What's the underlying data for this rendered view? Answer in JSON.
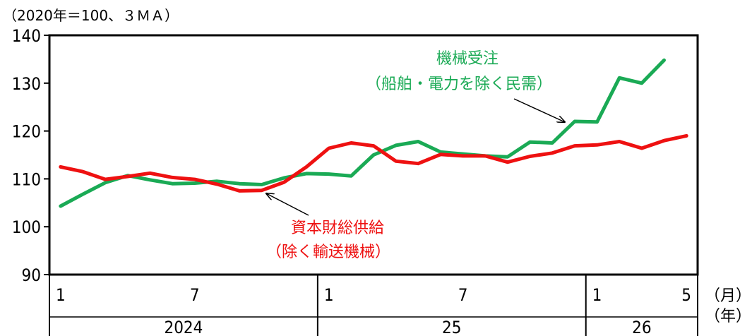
{
  "unit_label": "（2020年＝100、３ＭＡ）",
  "colors": {
    "machinery_orders": "#1aaa55",
    "capital_goods": "#ee1111",
    "axis": "#000000"
  },
  "chart_data": {
    "type": "line",
    "ylim": [
      90,
      140
    ],
    "yticks": [
      90,
      100,
      110,
      120,
      130,
      140
    ],
    "x_month_ticks": [
      {
        "index": 0,
        "label": "1"
      },
      {
        "index": 6,
        "label": "7"
      },
      {
        "index": 12,
        "label": "1"
      },
      {
        "index": 18,
        "label": "7"
      },
      {
        "index": 24,
        "label": "1"
      },
      {
        "index": 28,
        "label": "5"
      }
    ],
    "year_groups": [
      {
        "label": "2024",
        "start": 0,
        "end": 11
      },
      {
        "label": "25",
        "start": 12,
        "end": 23
      },
      {
        "label": "26",
        "start": 24,
        "end": 28
      }
    ],
    "month_axis_unit": "（月）",
    "year_axis_unit": "（年）",
    "series": [
      {
        "name_lines": [
          "機械受注",
          "（船舶・電力を除く民需）"
        ],
        "color": "#1aaa55",
        "values": [
          104.3,
          106.8,
          109.2,
          110.7,
          109.8,
          109.0,
          109.1,
          109.5,
          109.0,
          108.8,
          110.2,
          111.1,
          111.0,
          110.6,
          115.0,
          117.0,
          117.8,
          115.6,
          115.2,
          114.8,
          114.6,
          117.7,
          117.5,
          122.0,
          121.9,
          131.1,
          130.0,
          134.8
        ]
      },
      {
        "name_lines": [
          "資本財総供給",
          "（除く輸送機械）"
        ],
        "color": "#ee1111",
        "values": [
          112.5,
          111.5,
          109.9,
          110.5,
          111.2,
          110.3,
          109.9,
          108.9,
          107.5,
          107.6,
          109.3,
          112.5,
          116.4,
          117.5,
          116.9,
          113.7,
          113.2,
          115.1,
          114.8,
          114.8,
          113.5,
          114.7,
          115.4,
          116.9,
          117.1,
          117.8,
          116.4,
          118.0,
          119.0
        ]
      }
    ]
  }
}
